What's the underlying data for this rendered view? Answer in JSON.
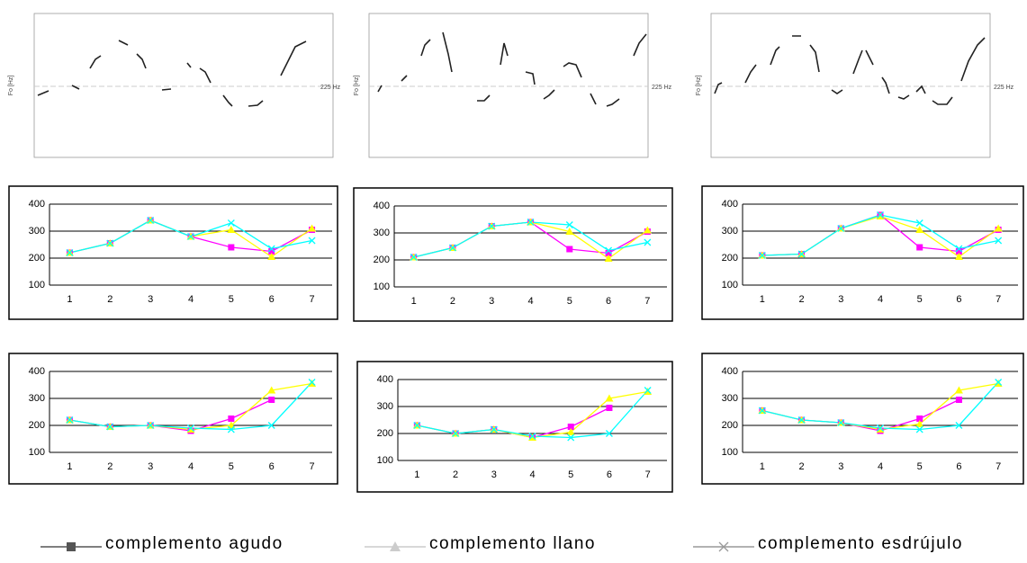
{
  "contours": {
    "y_label": "Fo [Hz]",
    "reference_label": "225 Hz"
  },
  "legend": {
    "series": [
      {
        "name": "complemento agudo",
        "color": "#555555",
        "marker": "square"
      },
      {
        "name": "complemento llano",
        "color": "#cccccc",
        "marker": "triangle"
      },
      {
        "name": "complemento esdrújulo",
        "color": "#999999",
        "marker": "x"
      }
    ]
  },
  "chart_data": [
    {
      "type": "line",
      "categories": [
        "1",
        "2",
        "3",
        "4",
        "5",
        "6",
        "7"
      ],
      "ylim": [
        100,
        400
      ],
      "yticks": [
        100,
        200,
        300,
        400
      ],
      "grid": true,
      "series": [
        {
          "color": "#ff00ff",
          "marker": "square",
          "values": [
            220,
            255,
            340,
            280,
            240,
            225,
            305
          ]
        },
        {
          "color": "#ffff00",
          "marker": "triangle",
          "values": [
            220,
            255,
            340,
            280,
            305,
            205,
            310
          ]
        },
        {
          "color": "#00ffff",
          "marker": "x",
          "values": [
            220,
            255,
            340,
            280,
            330,
            235,
            265
          ]
        }
      ]
    },
    {
      "type": "line",
      "categories": [
        "1",
        "2",
        "3",
        "4",
        "5",
        "6",
        "7"
      ],
      "ylim": [
        100,
        400
      ],
      "yticks": [
        100,
        200,
        300,
        400
      ],
      "grid": true,
      "series": [
        {
          "color": "#ff00ff",
          "marker": "square",
          "values": [
            210,
            245,
            325,
            340,
            240,
            225,
            305
          ]
        },
        {
          "color": "#ffff00",
          "marker": "triangle",
          "values": [
            210,
            245,
            325,
            340,
            305,
            205,
            310
          ]
        },
        {
          "color": "#00ffff",
          "marker": "x",
          "values": [
            210,
            245,
            325,
            340,
            330,
            235,
            265
          ]
        }
      ]
    },
    {
      "type": "line",
      "categories": [
        "1",
        "2",
        "3",
        "4",
        "5",
        "6",
        "7"
      ],
      "ylim": [
        100,
        400
      ],
      "yticks": [
        100,
        200,
        300,
        400
      ],
      "grid": true,
      "series": [
        {
          "color": "#ff00ff",
          "marker": "square",
          "values": [
            210,
            215,
            310,
            360,
            240,
            225,
            305
          ]
        },
        {
          "color": "#ffff00",
          "marker": "triangle",
          "values": [
            210,
            215,
            310,
            355,
            305,
            205,
            310
          ]
        },
        {
          "color": "#00ffff",
          "marker": "x",
          "values": [
            210,
            215,
            310,
            360,
            330,
            235,
            265
          ]
        }
      ]
    },
    {
      "type": "line",
      "categories": [
        "1",
        "2",
        "3",
        "4",
        "5",
        "6",
        "7"
      ],
      "ylim": [
        100,
        400
      ],
      "yticks": [
        100,
        200,
        300,
        400
      ],
      "grid": true,
      "series": [
        {
          "color": "#ff00ff",
          "marker": "square",
          "values": [
            220,
            195,
            200,
            180,
            225,
            295,
            null
          ]
        },
        {
          "color": "#ffff00",
          "marker": "triangle",
          "values": [
            220,
            195,
            200,
            185,
            200,
            330,
            355
          ]
        },
        {
          "color": "#00ffff",
          "marker": "x",
          "values": [
            220,
            195,
            200,
            190,
            185,
            200,
            360
          ]
        }
      ]
    },
    {
      "type": "line",
      "categories": [
        "1",
        "2",
        "3",
        "4",
        "5",
        "6",
        "7"
      ],
      "ylim": [
        100,
        400
      ],
      "yticks": [
        100,
        200,
        300,
        400
      ],
      "grid": true,
      "series": [
        {
          "color": "#ff00ff",
          "marker": "square",
          "values": [
            230,
            200,
            215,
            185,
            225,
            295,
            null
          ]
        },
        {
          "color": "#ffff00",
          "marker": "triangle",
          "values": [
            230,
            200,
            215,
            185,
            205,
            330,
            355
          ]
        },
        {
          "color": "#00ffff",
          "marker": "x",
          "values": [
            230,
            200,
            215,
            190,
            185,
            200,
            360
          ]
        }
      ]
    },
    {
      "type": "line",
      "categories": [
        "1",
        "2",
        "3",
        "4",
        "5",
        "6",
        "7"
      ],
      "ylim": [
        100,
        400
      ],
      "yticks": [
        100,
        200,
        300,
        400
      ],
      "grid": true,
      "series": [
        {
          "color": "#ff00ff",
          "marker": "square",
          "values": [
            255,
            220,
            210,
            180,
            225,
            295,
            null
          ]
        },
        {
          "color": "#ffff00",
          "marker": "triangle",
          "values": [
            255,
            220,
            210,
            185,
            205,
            330,
            355
          ]
        },
        {
          "color": "#00ffff",
          "marker": "x",
          "values": [
            255,
            220,
            210,
            190,
            185,
            200,
            360
          ]
        }
      ]
    }
  ]
}
